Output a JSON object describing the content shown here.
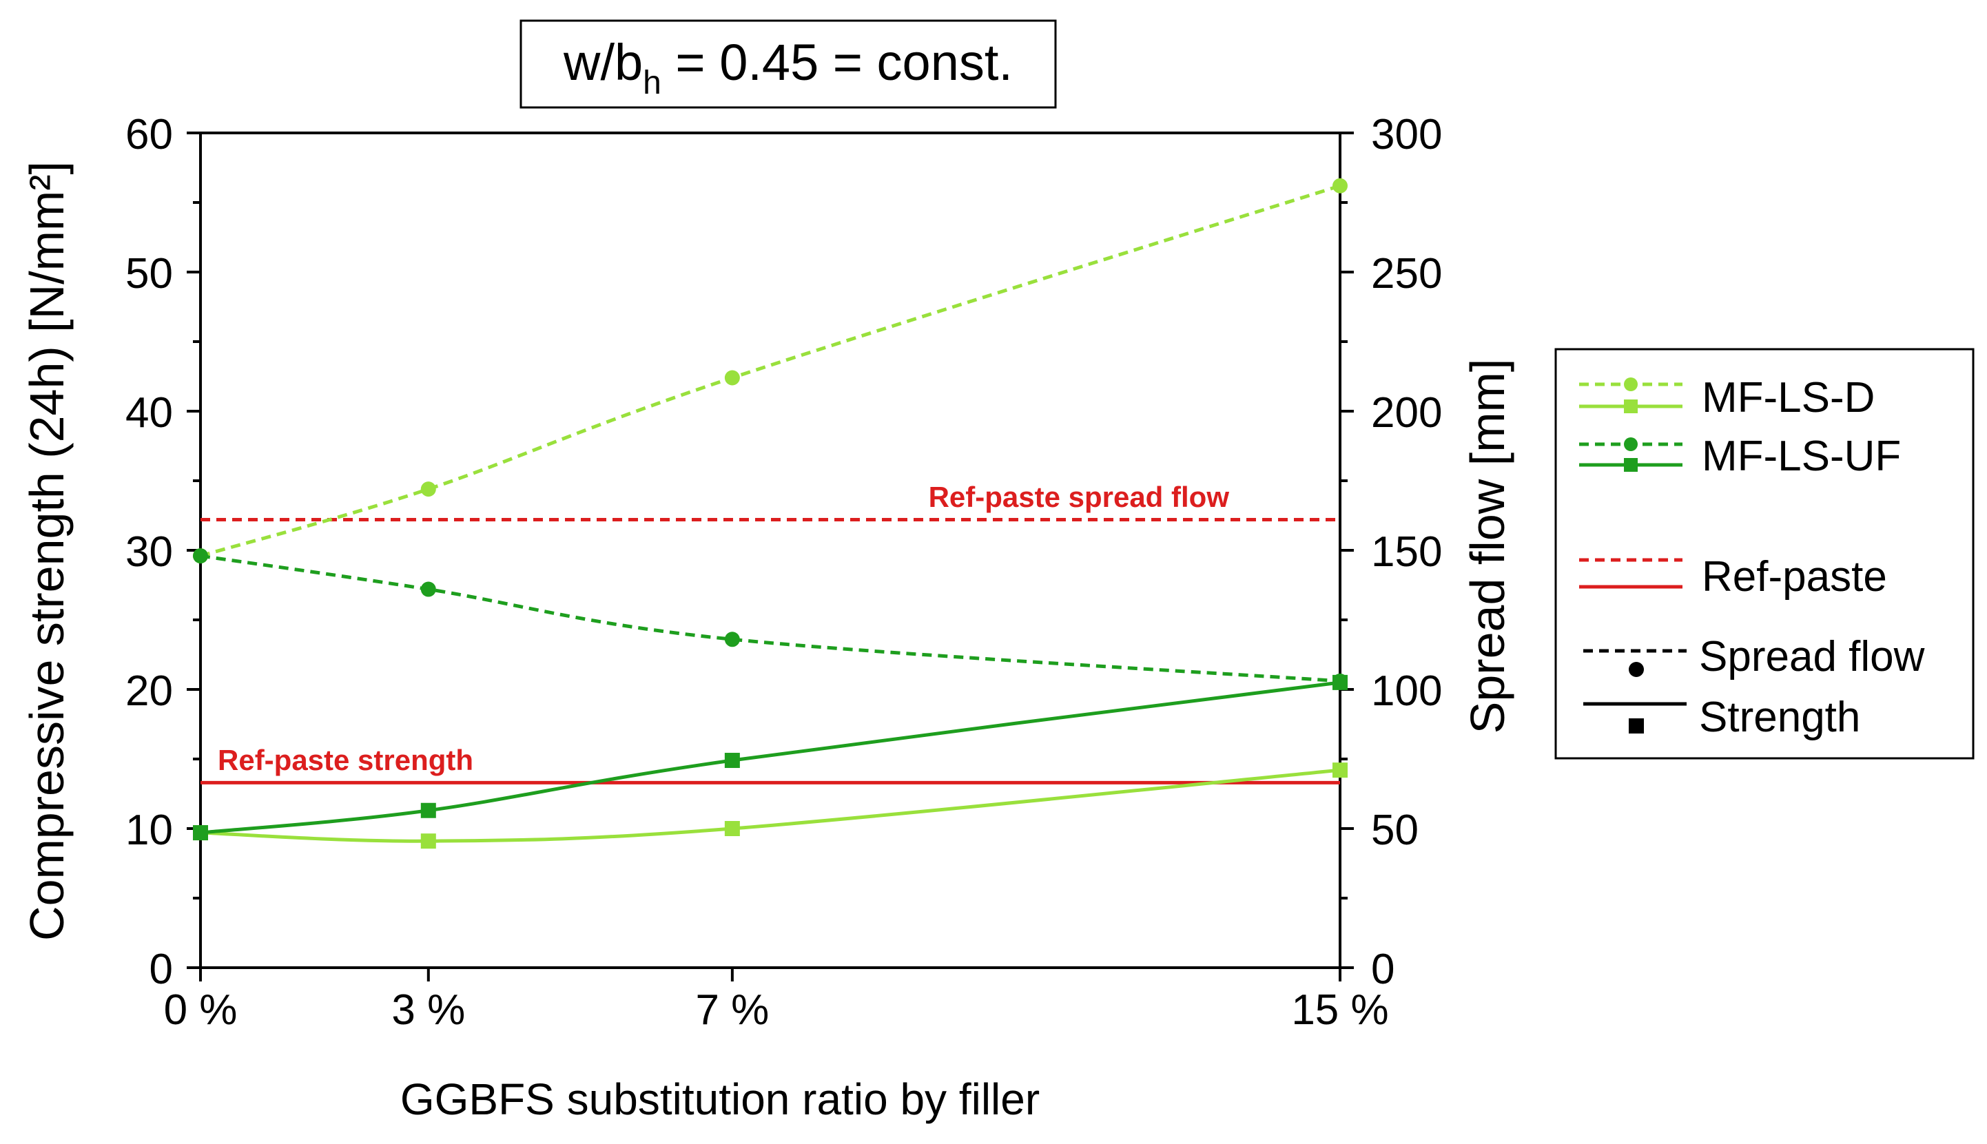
{
  "chart_data": {
    "type": "line",
    "title": "w/b",
    "title_subscript": "h",
    "title_rest": " = 0.45 = const.",
    "xlabel": "GGBFS substitution ratio by filler",
    "ylabel_left": "Compressive strength (24h) [N/mm²]",
    "ylabel_right": "Spread flow [mm]",
    "x": [
      0,
      3,
      7,
      15
    ],
    "xtick_labels": [
      "0 %",
      "3 %",
      "7 %",
      "15 %"
    ],
    "ylim_left": [
      0,
      60
    ],
    "yticks_left": [
      0,
      10,
      20,
      30,
      40,
      50,
      60
    ],
    "ylim_right": [
      0,
      300
    ],
    "yticks_right": [
      0,
      50,
      100,
      150,
      200,
      250,
      300
    ],
    "grid": false,
    "series": [
      {
        "name": "MF-LS-D spread flow",
        "axis": "right",
        "style": "dashed",
        "marker": "circle",
        "color": "#99e03c",
        "values": [
          148,
          172,
          212,
          281
        ]
      },
      {
        "name": "MF-LS-D strength",
        "axis": "left",
        "style": "solid",
        "marker": "square",
        "color": "#99e03c",
        "values": [
          9.7,
          9.1,
          10.0,
          14.2
        ]
      },
      {
        "name": "MF-LS-UF spread flow",
        "axis": "right",
        "style": "dashed",
        "marker": "circle",
        "color": "#1e9e1e",
        "values": [
          148,
          136,
          118,
          103
        ]
      },
      {
        "name": "MF-LS-UF strength",
        "axis": "left",
        "style": "solid",
        "marker": "square",
        "color": "#1e9e1e",
        "values": [
          9.7,
          11.3,
          14.9,
          20.5
        ]
      }
    ],
    "reference_lines": [
      {
        "name": "Ref-paste spread flow",
        "label": "Ref-paste spread flow",
        "axis": "right",
        "value": 161,
        "style": "dashed",
        "color": "#dc1e1e"
      },
      {
        "name": "Ref-paste strength",
        "label": "Ref-paste strength",
        "axis": "left",
        "value": 13.3,
        "style": "solid",
        "color": "#dc1e1e"
      }
    ],
    "legend": {
      "position": "right",
      "entries": [
        {
          "label": "MF-LS-D",
          "color": "#99e03c"
        },
        {
          "label": "MF-LS-UF",
          "color": "#1e9e1e"
        },
        {
          "label": "Ref-paste",
          "color": "#dc1e1e"
        },
        {
          "label": "Spread flow",
          "color": "#000000"
        },
        {
          "label": "Strength",
          "color": "#000000"
        }
      ]
    }
  }
}
